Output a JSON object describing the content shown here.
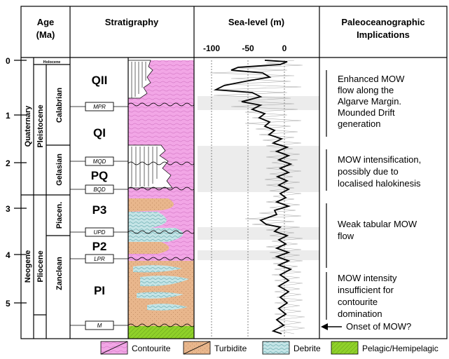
{
  "headers": {
    "age_line1": "Age",
    "age_line2": "(Ma)",
    "stratigraphy": "Stratigraphy",
    "sealevel": "Sea-level (m)",
    "implications_line1": "Paleoceanographic",
    "implications_line2": "Implications"
  },
  "age_ticks": [
    "0",
    "1",
    "2",
    "3",
    "4",
    "5"
  ],
  "sealevel_ticks": [
    "-100",
    "-50",
    "0"
  ],
  "epochs": {
    "holocene": "Holocene",
    "quaternary": "Quaternary",
    "pleistocene": "Pleistocene",
    "calabrian": "Calabrian",
    "gelasian": "Gelasian",
    "neogene": "Neogene",
    "pliocene": "Pliocene",
    "piacenzian": "Piacen.",
    "zanclean": "Zanclean"
  },
  "units": [
    "QII",
    "QI",
    "PQ",
    "P3",
    "P2",
    "PI"
  ],
  "boundaries": [
    "MPR",
    "MQD",
    "BQD",
    "UPD",
    "LPR",
    "M"
  ],
  "implications": {
    "block1": [
      "Enhanced MOW",
      "flow along the",
      "Algarve Margin.",
      "Mounded Drift",
      "generation"
    ],
    "block2": [
      "MOW intensification,",
      "possibly due to",
      "localised halokinesis"
    ],
    "block3": [
      "Weak tabular MOW",
      "flow"
    ],
    "block4": [
      "MOW intensity",
      "insufficient for",
      "contourite",
      "domination"
    ],
    "onset": "Onset of MOW?"
  },
  "legend": {
    "contourite": "Contourite",
    "turbidite": "Turbidite",
    "debrite": "Debrite",
    "pelagic": "Pelagic/Hemipelagic"
  },
  "colors": {
    "contourite": "#f2a6e6",
    "turbidite": "#e8b68c",
    "debrite": "#c4e4e6",
    "pelagic": "#8fd12a",
    "band": "#ececec"
  }
}
